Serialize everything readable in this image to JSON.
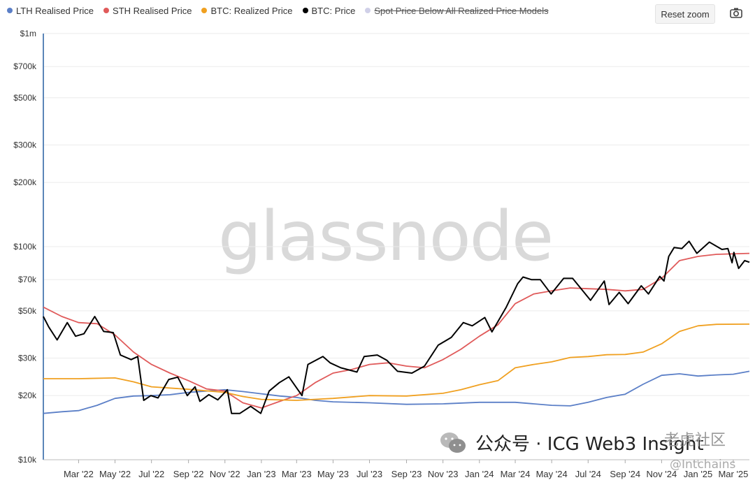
{
  "legend": [
    {
      "label": "LTH Realised Price",
      "color": "#5b7fc7",
      "hidden": false
    },
    {
      "label": "STH Realised Price",
      "color": "#e05a5a",
      "hidden": false
    },
    {
      "label": "BTC: Realized Price",
      "color": "#f0a020",
      "hidden": false
    },
    {
      "label": "BTC: Price",
      "color": "#000000",
      "hidden": false
    },
    {
      "label": "Spot Price Below All Realized Price Models",
      "color": "#d0d0e8",
      "hidden": true
    }
  ],
  "toolbar": {
    "reset_zoom": "Reset zoom"
  },
  "watermark": "glassnode",
  "overlay": {
    "text": "公众号 · ICG Web3 Insight",
    "brand": "老虎社区",
    "handle": "@Intchains"
  },
  "chart_data": {
    "type": "line",
    "y_scale": "log",
    "ylim": [
      10000,
      1000000
    ],
    "y_ticks": [
      {
        "value": 10000,
        "label": "$10k"
      },
      {
        "value": 20000,
        "label": "$20k"
      },
      {
        "value": 30000,
        "label": "$30k"
      },
      {
        "value": 50000,
        "label": "$50k"
      },
      {
        "value": 70000,
        "label": "$70k"
      },
      {
        "value": 100000,
        "label": "$100k"
      },
      {
        "value": 200000,
        "label": "$200k"
      },
      {
        "value": 300000,
        "label": "$300k"
      },
      {
        "value": 500000,
        "label": "$500k"
      },
      {
        "value": 700000,
        "label": "$700k"
      },
      {
        "value": 1000000,
        "label": "$1m"
      }
    ],
    "x_range": [
      "2022-01-01",
      "2025-03-28"
    ],
    "x_ticks": [
      {
        "date": "2022-03-01",
        "label": "Mar '22"
      },
      {
        "date": "2022-05-01",
        "label": "May '22"
      },
      {
        "date": "2022-07-01",
        "label": "Jul '22"
      },
      {
        "date": "2022-09-01",
        "label": "Sep '22"
      },
      {
        "date": "2022-11-01",
        "label": "Nov '22"
      },
      {
        "date": "2023-01-01",
        "label": "Jan '23"
      },
      {
        "date": "2023-03-01",
        "label": "Mar '23"
      },
      {
        "date": "2023-05-01",
        "label": "May '23"
      },
      {
        "date": "2023-07-01",
        "label": "Jul '23"
      },
      {
        "date": "2023-09-01",
        "label": "Sep '23"
      },
      {
        "date": "2023-11-01",
        "label": "Nov '23"
      },
      {
        "date": "2024-01-01",
        "label": "Jan '24"
      },
      {
        "date": "2024-03-01",
        "label": "Mar '24"
      },
      {
        "date": "2024-05-01",
        "label": "May '24"
      },
      {
        "date": "2024-07-01",
        "label": "Jul '24"
      },
      {
        "date": "2024-09-01",
        "label": "Sep '24"
      },
      {
        "date": "2024-11-01",
        "label": "Nov '24"
      },
      {
        "date": "2025-01-01",
        "label": "Jan '25"
      },
      {
        "date": "2025-03-01",
        "label": "Mar '25"
      }
    ],
    "series": [
      {
        "name": "LTH Realised Price",
        "color": "#5b7fc7",
        "width": 1.8,
        "points": [
          [
            "2022-01-01",
            16500
          ],
          [
            "2022-02-01",
            16800
          ],
          [
            "2022-03-01",
            17000
          ],
          [
            "2022-04-01",
            18000
          ],
          [
            "2022-05-01",
            19400
          ],
          [
            "2022-06-01",
            19900
          ],
          [
            "2022-07-01",
            20000
          ],
          [
            "2022-08-01",
            20200
          ],
          [
            "2022-09-01",
            20700
          ],
          [
            "2022-10-01",
            21000
          ],
          [
            "2022-11-01",
            21300
          ],
          [
            "2022-12-01",
            20900
          ],
          [
            "2023-01-01",
            20400
          ],
          [
            "2023-02-01",
            19900
          ],
          [
            "2023-03-01",
            19600
          ],
          [
            "2023-04-01",
            19000
          ],
          [
            "2023-05-01",
            18700
          ],
          [
            "2023-07-01",
            18500
          ],
          [
            "2023-09-01",
            18200
          ],
          [
            "2023-11-01",
            18300
          ],
          [
            "2024-01-01",
            18600
          ],
          [
            "2024-03-01",
            18600
          ],
          [
            "2024-05-01",
            18000
          ],
          [
            "2024-06-01",
            17900
          ],
          [
            "2024-07-01",
            18600
          ],
          [
            "2024-08-01",
            19600
          ],
          [
            "2024-09-01",
            20300
          ],
          [
            "2024-10-01",
            22600
          ],
          [
            "2024-11-01",
            24900
          ],
          [
            "2024-12-01",
            25300
          ],
          [
            "2025-01-01",
            24700
          ],
          [
            "2025-02-01",
            25000
          ],
          [
            "2025-03-01",
            25200
          ],
          [
            "2025-03-28",
            26000
          ]
        ]
      },
      {
        "name": "STH Realised Price",
        "color": "#e05a5a",
        "width": 1.8,
        "points": [
          [
            "2022-01-01",
            52000
          ],
          [
            "2022-02-01",
            47000
          ],
          [
            "2022-03-01",
            44000
          ],
          [
            "2022-04-01",
            43500
          ],
          [
            "2022-05-01",
            38500
          ],
          [
            "2022-06-01",
            32000
          ],
          [
            "2022-07-01",
            28000
          ],
          [
            "2022-08-01",
            25500
          ],
          [
            "2022-09-01",
            23500
          ],
          [
            "2022-10-01",
            21500
          ],
          [
            "2022-11-01",
            21000
          ],
          [
            "2022-12-01",
            18500
          ],
          [
            "2023-01-01",
            17500
          ],
          [
            "2023-02-01",
            18800
          ],
          [
            "2023-03-01",
            20000
          ],
          [
            "2023-04-01",
            23000
          ],
          [
            "2023-05-01",
            25500
          ],
          [
            "2023-06-01",
            26500
          ],
          [
            "2023-07-01",
            28000
          ],
          [
            "2023-08-01",
            28500
          ],
          [
            "2023-09-01",
            27500
          ],
          [
            "2023-10-01",
            27000
          ],
          [
            "2023-11-01",
            29500
          ],
          [
            "2023-12-01",
            33000
          ],
          [
            "2024-01-01",
            38000
          ],
          [
            "2024-02-01",
            43000
          ],
          [
            "2024-03-01",
            54000
          ],
          [
            "2024-04-01",
            60000
          ],
          [
            "2024-05-01",
            62000
          ],
          [
            "2024-06-01",
            64000
          ],
          [
            "2024-07-01",
            63500
          ],
          [
            "2024-08-01",
            63000
          ],
          [
            "2024-09-01",
            62000
          ],
          [
            "2024-10-01",
            63000
          ],
          [
            "2024-11-01",
            71000
          ],
          [
            "2024-12-01",
            86000
          ],
          [
            "2025-01-01",
            90000
          ],
          [
            "2025-02-01",
            92000
          ],
          [
            "2025-03-28",
            93000
          ]
        ]
      },
      {
        "name": "BTC: Realized Price",
        "color": "#f0a020",
        "width": 1.8,
        "points": [
          [
            "2022-01-01",
            24000
          ],
          [
            "2022-03-01",
            24000
          ],
          [
            "2022-05-01",
            24200
          ],
          [
            "2022-06-01",
            23200
          ],
          [
            "2022-07-01",
            22000
          ],
          [
            "2022-09-01",
            21400
          ],
          [
            "2022-11-01",
            20700
          ],
          [
            "2022-12-01",
            19800
          ],
          [
            "2023-01-01",
            19200
          ],
          [
            "2023-03-01",
            19000
          ],
          [
            "2023-05-01",
            19400
          ],
          [
            "2023-07-01",
            20000
          ],
          [
            "2023-09-01",
            19900
          ],
          [
            "2023-11-01",
            20500
          ],
          [
            "2023-12-01",
            21300
          ],
          [
            "2024-01-01",
            22500
          ],
          [
            "2024-02-01",
            23500
          ],
          [
            "2024-03-01",
            27000
          ],
          [
            "2024-04-01",
            28000
          ],
          [
            "2024-05-01",
            28800
          ],
          [
            "2024-06-01",
            30200
          ],
          [
            "2024-07-01",
            30500
          ],
          [
            "2024-08-01",
            31100
          ],
          [
            "2024-09-01",
            31200
          ],
          [
            "2024-10-01",
            32000
          ],
          [
            "2024-11-01",
            35000
          ],
          [
            "2024-12-01",
            40000
          ],
          [
            "2025-01-01",
            42500
          ],
          [
            "2025-02-01",
            43200
          ],
          [
            "2025-03-28",
            43300
          ]
        ]
      },
      {
        "name": "BTC: Price",
        "color": "#000000",
        "width": 2,
        "points": [
          [
            "2022-01-01",
            47000
          ],
          [
            "2022-01-10",
            42000
          ],
          [
            "2022-01-24",
            36500
          ],
          [
            "2022-02-10",
            44000
          ],
          [
            "2022-02-24",
            38000
          ],
          [
            "2022-03-10",
            39000
          ],
          [
            "2022-03-28",
            47000
          ],
          [
            "2022-04-12",
            40000
          ],
          [
            "2022-04-28",
            39500
          ],
          [
            "2022-05-10",
            31000
          ],
          [
            "2022-05-28",
            29500
          ],
          [
            "2022-06-08",
            30500
          ],
          [
            "2022-06-18",
            19000
          ],
          [
            "2022-06-30",
            20000
          ],
          [
            "2022-07-12",
            19500
          ],
          [
            "2022-07-30",
            23800
          ],
          [
            "2022-08-14",
            24400
          ],
          [
            "2022-08-30",
            20000
          ],
          [
            "2022-09-12",
            22000
          ],
          [
            "2022-09-20",
            18800
          ],
          [
            "2022-10-05",
            20200
          ],
          [
            "2022-10-20",
            19100
          ],
          [
            "2022-11-05",
            21300
          ],
          [
            "2022-11-12",
            16500
          ],
          [
            "2022-11-26",
            16500
          ],
          [
            "2022-12-14",
            17800
          ],
          [
            "2022-12-31",
            16500
          ],
          [
            "2023-01-14",
            21000
          ],
          [
            "2023-01-31",
            23000
          ],
          [
            "2023-02-16",
            24500
          ],
          [
            "2023-03-10",
            20000
          ],
          [
            "2023-03-20",
            28000
          ],
          [
            "2023-04-14",
            30500
          ],
          [
            "2023-04-26",
            28500
          ],
          [
            "2023-05-14",
            27000
          ],
          [
            "2023-06-10",
            25800
          ],
          [
            "2023-06-22",
            30500
          ],
          [
            "2023-07-14",
            31000
          ],
          [
            "2023-07-30",
            29300
          ],
          [
            "2023-08-17",
            26000
          ],
          [
            "2023-09-10",
            25500
          ],
          [
            "2023-10-01",
            27500
          ],
          [
            "2023-10-24",
            34500
          ],
          [
            "2023-11-15",
            37500
          ],
          [
            "2023-12-05",
            44000
          ],
          [
            "2023-12-20",
            42500
          ],
          [
            "2024-01-10",
            46500
          ],
          [
            "2024-01-22",
            39800
          ],
          [
            "2024-02-15",
            52000
          ],
          [
            "2024-03-05",
            67000
          ],
          [
            "2024-03-14",
            72000
          ],
          [
            "2024-03-28",
            70000
          ],
          [
            "2024-04-12",
            70000
          ],
          [
            "2024-04-30",
            60000
          ],
          [
            "2024-05-21",
            71000
          ],
          [
            "2024-06-05",
            71000
          ],
          [
            "2024-07-05",
            56000
          ],
          [
            "2024-07-28",
            69000
          ],
          [
            "2024-08-05",
            53500
          ],
          [
            "2024-08-22",
            61000
          ],
          [
            "2024-09-06",
            54000
          ],
          [
            "2024-09-28",
            65500
          ],
          [
            "2024-10-10",
            60000
          ],
          [
            "2024-10-29",
            72500
          ],
          [
            "2024-11-05",
            69000
          ],
          [
            "2024-11-13",
            90000
          ],
          [
            "2024-11-22",
            99000
          ],
          [
            "2024-12-05",
            98000
          ],
          [
            "2024-12-17",
            106000
          ],
          [
            "2024-12-30",
            93000
          ],
          [
            "2025-01-20",
            105000
          ],
          [
            "2025-02-10",
            97000
          ],
          [
            "2025-02-20",
            98000
          ],
          [
            "2025-02-27",
            84000
          ],
          [
            "2025-03-02",
            94000
          ],
          [
            "2025-03-10",
            79000
          ],
          [
            "2025-03-20",
            86000
          ],
          [
            "2025-03-28",
            84500
          ]
        ]
      }
    ]
  }
}
